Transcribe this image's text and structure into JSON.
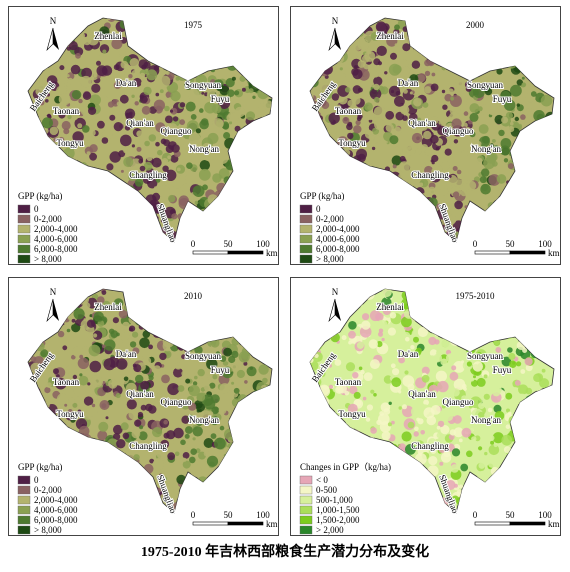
{
  "panels": [
    {
      "title": "1975",
      "north": "N",
      "legend_title": "GPP (kg/ha)",
      "legend": [
        {
          "label": "0",
          "color": "#4f1f45"
        },
        {
          "label": "0-2,000",
          "color": "#8a6262"
        },
        {
          "label": "2,000-4,000",
          "color": "#b3b36e"
        },
        {
          "label": "4,000-6,000",
          "color": "#8aa052"
        },
        {
          "label": "6,000-8,000",
          "color": "#4e7a30"
        },
        {
          "label": "> 8,000",
          "color": "#1e4a14"
        }
      ],
      "places": [
        "Zhenlai",
        "Baicheng",
        "Da'an",
        "Songyuan",
        "Fuyu",
        "Taonan",
        "Qian'an",
        "Qianguo",
        "Tongyu",
        "Nong'an",
        "Changling",
        "Shuangliao"
      ],
      "scale": {
        "ticks": [
          0,
          50,
          100
        ],
        "unit": "km"
      }
    },
    {
      "title": "2000",
      "north": "N",
      "legend_title": "GPP (kg/ha)",
      "legend": [
        {
          "label": "0",
          "color": "#4f1f45"
        },
        {
          "label": "0-2,000",
          "color": "#8a6262"
        },
        {
          "label": "2,000-4,000",
          "color": "#b3b36e"
        },
        {
          "label": "4,000-6,000",
          "color": "#8aa052"
        },
        {
          "label": "6,000-8,000",
          "color": "#4e7a30"
        },
        {
          "label": "> 8,000",
          "color": "#1e4a14"
        }
      ],
      "places": [
        "Zhenlai",
        "Baicheng",
        "Da'an",
        "Songyuan",
        "Fuyu",
        "Taonan",
        "Qian'an",
        "Qianguo",
        "Tongyu",
        "Nong'an",
        "Changling",
        "Shuangliao"
      ],
      "scale": {
        "ticks": [
          0,
          50,
          100
        ],
        "unit": "km"
      }
    },
    {
      "title": "2010",
      "north": "N",
      "legend_title": "GPP (kg/ha)",
      "legend": [
        {
          "label": "0",
          "color": "#4f1f45"
        },
        {
          "label": "0-2,000",
          "color": "#8a6262"
        },
        {
          "label": "2,000-4,000",
          "color": "#b3b36e"
        },
        {
          "label": "4,000-6,000",
          "color": "#8aa052"
        },
        {
          "label": "6,000-8,000",
          "color": "#4e7a30"
        },
        {
          "label": "> 8,000",
          "color": "#1e4a14"
        }
      ],
      "places": [
        "Zhenlai",
        "Baicheng",
        "Da'an",
        "Songyuan",
        "Fuyu",
        "Taonan",
        "Qian'an",
        "Qianguo",
        "Tongyu",
        "Nong'an",
        "Changling",
        "Shuangliao"
      ],
      "scale": {
        "ticks": [
          0,
          50,
          100
        ],
        "unit": "km"
      }
    },
    {
      "title": "1975-2010",
      "north": "N",
      "legend_title": "Changes in GPP（kg/ha)",
      "legend": [
        {
          "label": "< 0",
          "color": "#e6a6b6"
        },
        {
          "label": "0-500",
          "color": "#f4f6c6"
        },
        {
          "label": "500-1,000",
          "color": "#d6f09c"
        },
        {
          "label": "1,000-1,500",
          "color": "#aade5a"
        },
        {
          "label": "1,500-2,000",
          "color": "#7ccc1e"
        },
        {
          "label": "> 2,000",
          "color": "#2a862a"
        }
      ],
      "places": [
        "Zhenlai",
        "Baicheng",
        "Da'an",
        "Songyuan",
        "Fuyu",
        "Taonan",
        "Qian'an",
        "Qianguo",
        "Tongyu",
        "Nong'an",
        "Changling",
        "Shuangliao"
      ],
      "scale": {
        "ticks": [
          0,
          50,
          100
        ],
        "unit": "km"
      }
    }
  ],
  "caption": "1975-2010 年吉林西部粮食生产潜力分布及变化"
}
